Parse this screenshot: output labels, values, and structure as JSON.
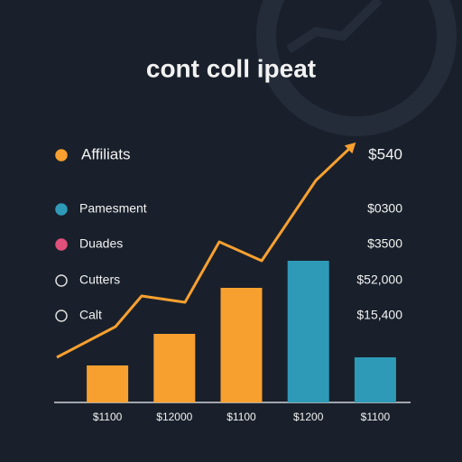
{
  "chart_data": {
    "type": "bar",
    "title": "cont coll ipeat",
    "categories": [
      "$1100",
      "$12000",
      "$1100",
      "$1200",
      "$1100"
    ],
    "values": [
      41,
      76,
      127,
      157,
      50
    ],
    "colors": [
      "#f7a030",
      "#f7a030",
      "#f7a030",
      "#2e9ab8",
      "#2e9ab8"
    ],
    "ylim": [
      0,
      300
    ],
    "line": {
      "color": "#f7a030",
      "x": [
        3,
        68,
        97,
        145,
        183,
        230,
        290,
        330
      ],
      "values": [
        50,
        84,
        118,
        111,
        178,
        157,
        246,
        284
      ],
      "xlim": [
        0,
        395
      ]
    },
    "legend_items": [
      {
        "label": "Affiliats",
        "value": "$540"
      },
      {
        "label": "Pamesment",
        "value": "$0300"
      },
      {
        "label": "Duades",
        "value": "$3500"
      },
      {
        "label": "Cutters",
        "value": "$52,000"
      },
      {
        "label": "Calt",
        "value": "$15,400"
      }
    ]
  }
}
